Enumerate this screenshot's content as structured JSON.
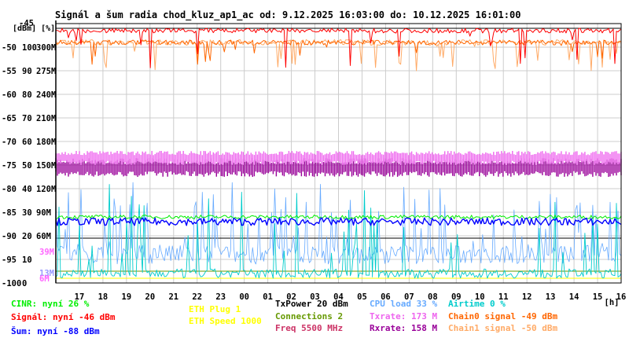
{
  "title": "Signál a šum radia chod_kluz_ap1_ac od: 9.12.2025 16:03:00 do: 10.12.2025 16:01:00",
  "units_header": "[dBm] [%]",
  "axes": {
    "dbm": {
      "min": -100,
      "max": -45,
      "ticks": [
        -50,
        -55,
        -60,
        -65,
        -70,
        -75,
        -80,
        -85,
        -90,
        -95,
        -100
      ],
      "top_label": "-45"
    },
    "percent": {
      "ticks": [
        "100",
        "90",
        "80",
        "70",
        "60",
        "50",
        "40",
        "30",
        "20",
        "10",
        "0"
      ]
    },
    "rate": {
      "ticks": [
        "300M",
        "275M",
        "240M",
        "210M",
        "180M",
        "150M",
        "120M",
        "90M",
        "60M"
      ]
    },
    "rate_low_labels": [
      {
        "text": "39M",
        "color": "#ff66ff",
        "dbm": -93.5
      },
      {
        "text": "13M",
        "color": "#9999ff",
        "dbm": -98
      },
      {
        "text": "6M",
        "color": "#ff66ff",
        "dbm": -99.2
      }
    ],
    "time": {
      "labels": [
        "17",
        "18",
        "19",
        "20",
        "21",
        "22",
        "23",
        "00",
        "01",
        "02",
        "03",
        "04",
        "05",
        "06",
        "07",
        "08",
        "09",
        "10",
        "11",
        "12",
        "13",
        "14",
        "15",
        "16"
      ],
      "unit": "[h]"
    }
  },
  "legend": {
    "cinr": "CINR: nyní 26 %",
    "signal": "Signál: nyní -46 dBm",
    "noise": "Šum: nyní -88 dBm",
    "eth_plug": "ETH Plug 1",
    "eth_speed": "ETH Speed 1000",
    "txpower": "TxPower 20 dBm",
    "connections": "Connections 2",
    "freq": "Freq 5500 MHz",
    "cpu_load": "CPU load 33 %",
    "txrate": "Txrate: 173 M",
    "rxrate": "Rxrate: 158 M",
    "airtime": "Airtime 0 %",
    "chain0": "Chain0 signal -49 dBm",
    "chain1": "Chain1 signal -50 dBm"
  },
  "colors": {
    "cinr": "#00ee00",
    "signal": "#ff0000",
    "noise": "#0000ff",
    "eth": "#ffff00",
    "txpower": "#000000",
    "connections": "#669900",
    "freq": "#cc3366",
    "cpu": "#66aaff",
    "txrate": "#ee66ee",
    "rxrate": "#990099",
    "airtime": "#00cccc",
    "chain0": "#ff6600",
    "chain1": "#ffaa66"
  },
  "chart_data": {
    "type": "line",
    "title": "Signál a šum radia chod_kluz_ap1_ac od: 9.12.2025 16:03:00 do: 10.12.2025 16:01:00",
    "x_range": [
      "9.12.2025 16:03:00",
      "10.12.2025 16:01:00"
    ],
    "y_range_dbm": [
      -100,
      -45
    ],
    "series": [
      {
        "name": "Signál",
        "unit": "dBm",
        "level": -46,
        "current": -46
      },
      {
        "name": "Chain0 signal",
        "unit": "dBm",
        "level": -49,
        "current": -49
      },
      {
        "name": "Chain1 signal",
        "unit": "dBm",
        "level": -50,
        "current": -50
      },
      {
        "name": "Šum",
        "unit": "dBm",
        "level": -88,
        "current": -88
      },
      {
        "name": "CINR",
        "unit": "%",
        "current": 26
      },
      {
        "name": "CPU load",
        "unit": "%",
        "current": 33
      },
      {
        "name": "Airtime",
        "unit": "%",
        "current": 0
      },
      {
        "name": "Txrate",
        "unit": "M",
        "current": 173
      },
      {
        "name": "Rxrate",
        "unit": "M",
        "current": 158
      },
      {
        "name": "TxPower",
        "unit": "dBm",
        "current": 20
      },
      {
        "name": "Connections",
        "current": 2
      },
      {
        "name": "Freq",
        "unit": "MHz",
        "current": 5500
      },
      {
        "name": "ETH Plug",
        "current": 1
      },
      {
        "name": "ETH Speed",
        "current": 1000
      }
    ],
    "grid": true
  }
}
